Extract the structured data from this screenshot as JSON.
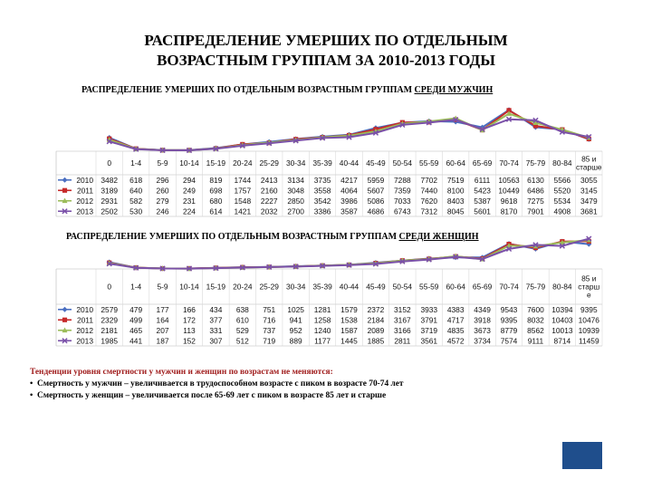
{
  "title_line1": "РАСПРЕДЕЛЕНИЕ УМЕРШИХ ПО ОТДЕЛЬНЫМ",
  "title_line2": "ВОЗРАСТНЫМ ГРУППАМ ЗА 2010-2013 ГОДЫ",
  "notes": {
    "heading": "Тенденции уровня смертности у мужчин и женщин по возрастам не меняются:",
    "items": [
      "Смертность у мужчин – увеличивается в трудоспособном возрасте с пиком в возрасте 70-74 лет",
      "Смертность у женщин – увеличивается после 65-69 лет с пиком в возрасте 85 лет и старше"
    ]
  },
  "colors": {
    "2010": "#4a6fc1",
    "2011": "#c62a2a",
    "2012": "#9bbb59",
    "2013": "#7a50a8"
  },
  "chart_data": [
    {
      "type": "line",
      "title_prefix": "РАСПРЕДЕЛЕНИЕ УМЕРШИХ ПО ОТДЕЛЬНЫМ ВОЗРАСТНЫМ ГРУППАМ ",
      "title_underlined": "СРЕДИ МУЖЧИН",
      "categories": [
        "0",
        "1-4",
        "5-9",
        "10-14",
        "15-19",
        "20-24",
        "25-29",
        "30-34",
        "35-39",
        "40-44",
        "45-49",
        "50-54",
        "55-59",
        "60-64",
        "65-69",
        "70-74",
        "75-79",
        "80-84",
        "85 и старше"
      ],
      "series": [
        {
          "name": "2010",
          "values": [
            3482,
            618,
            296,
            294,
            819,
            1744,
            2413,
            3134,
            3735,
            4217,
            5959,
            7288,
            7702,
            7519,
            6111,
            10563,
            6130,
            5566,
            3055
          ]
        },
        {
          "name": "2011",
          "values": [
            3189,
            640,
            260,
            249,
            698,
            1757,
            2160,
            3048,
            3558,
            4064,
            5607,
            7359,
            7440,
            8100,
            5423,
            10449,
            6486,
            5520,
            3145
          ]
        },
        {
          "name": "2012",
          "values": [
            2931,
            582,
            279,
            231,
            680,
            1548,
            2227,
            2850,
            3542,
            3986,
            5086,
            7033,
            7620,
            8403,
            5387,
            9618,
            7275,
            5534,
            3479
          ]
        },
        {
          "name": "2013",
          "values": [
            2502,
            530,
            246,
            224,
            614,
            1421,
            2032,
            2700,
            3386,
            3587,
            4686,
            6743,
            7312,
            8045,
            5601,
            8170,
            7901,
            4908,
            3681
          ]
        }
      ]
    },
    {
      "type": "line",
      "title_prefix": "РАСПРЕДЕЛЕНИЕ УМЕРШИХ ПО ОТДЕЛЬНЫМ ВОЗРАСТНЫМ ГРУППАМ ",
      "title_underlined": "СРЕДИ ЖЕНЩИН",
      "categories": [
        "0",
        "1-4",
        "5-9",
        "10-14",
        "15-19",
        "20-24",
        "25-29",
        "30-34",
        "35-39",
        "40-44",
        "45-49",
        "50-54",
        "55-59",
        "60-64",
        "65-69",
        "70-74",
        "75-79",
        "80-84",
        "85 и старше"
      ],
      "series": [
        {
          "name": "2010",
          "values": [
            2579,
            479,
            177,
            166,
            434,
            638,
            751,
            1025,
            1281,
            1579,
            2372,
            3152,
            3933,
            4383,
            4349,
            9543,
            7600,
            10394,
            9395
          ]
        },
        {
          "name": "2011",
          "values": [
            2329,
            499,
            164,
            172,
            377,
            610,
            716,
            941,
            1258,
            1538,
            2184,
            3167,
            3791,
            4717,
            3918,
            9395,
            8032,
            10403,
            10476
          ]
        },
        {
          "name": "2012",
          "values": [
            2181,
            465,
            207,
            113,
            331,
            529,
            737,
            952,
            1240,
            1587,
            2089,
            3166,
            3719,
            4835,
            3673,
            8779,
            8562,
            10013,
            10939
          ]
        },
        {
          "name": "2013",
          "values": [
            1985,
            441,
            187,
            152,
            307,
            512,
            719,
            889,
            1177,
            1445,
            1885,
            2811,
            3561,
            4572,
            3734,
            7574,
            9111,
            8714,
            11459
          ]
        }
      ]
    }
  ]
}
